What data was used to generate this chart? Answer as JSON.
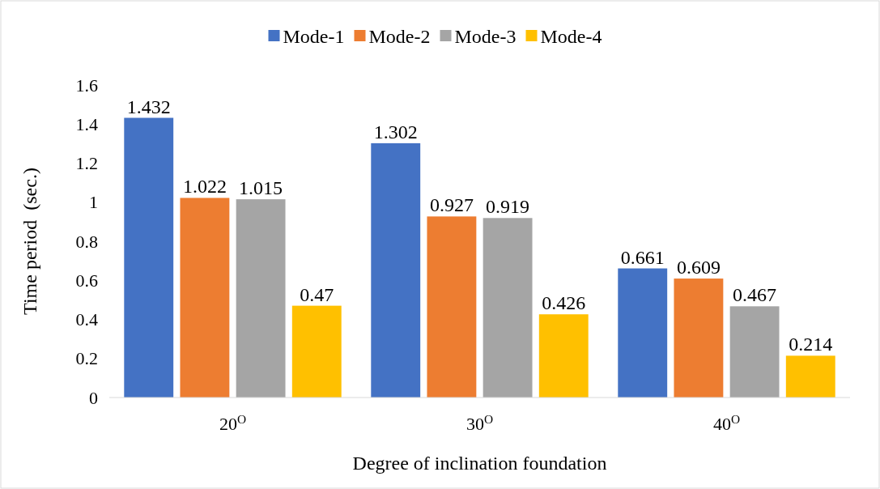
{
  "chart_data": {
    "type": "bar",
    "categories": [
      "20$^{O}$",
      "30$^{O}$",
      "40$^{O}$"
    ],
    "series": [
      {
        "name": "Mode-1",
        "color": "#4472c4",
        "values": [
          1.432,
          1.302,
          0.661
        ]
      },
      {
        "name": "Mode-2",
        "color": "#ed7d31",
        "values": [
          1.022,
          0.927,
          0.609
        ]
      },
      {
        "name": "Mode-3",
        "color": "#a5a5a5",
        "values": [
          1.015,
          0.919,
          0.467
        ]
      },
      {
        "name": "Mode-4",
        "color": "#ffc000",
        "values": [
          0.47,
          0.426,
          0.214
        ]
      }
    ],
    "xlabel": "Degree of inclination foundation",
    "ylabel": "Time period  (sec.)",
    "ylim": [
      0,
      1.6
    ],
    "yticks": [
      0,
      0.2,
      0.4,
      0.6,
      0.8,
      1,
      1.2,
      1.4,
      1.6
    ],
    "grid": false,
    "legend": "top",
    "data_labels": true
  }
}
